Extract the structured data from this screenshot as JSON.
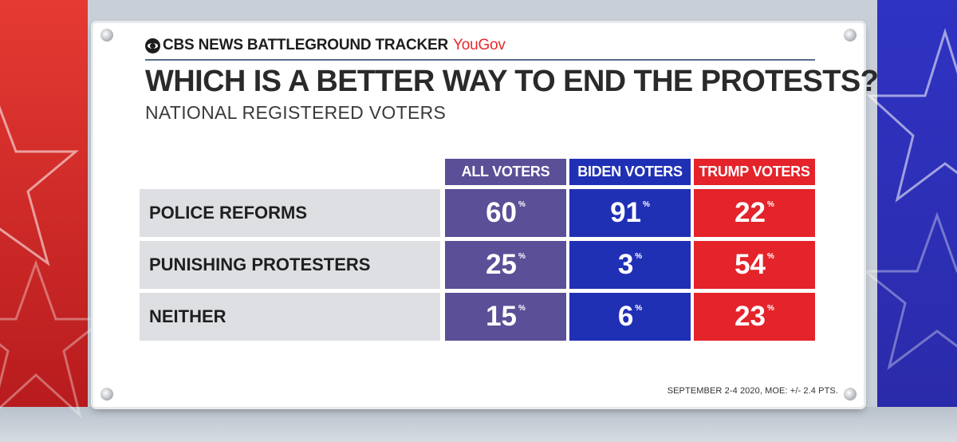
{
  "header": {
    "brand": "CBS NEWS BATTLEGROUND TRACKER",
    "partner": "YouGov",
    "title": "WHICH IS A BETTER WAY TO END THE PROTESTS?",
    "subtitle": "NATIONAL REGISTERED VOTERS"
  },
  "footer": {
    "note": "SEPTEMBER 2-4 2020, MOE: +/- 2.4 PTS."
  },
  "colors": {
    "all_voters": "#5b4f97",
    "biden_voters": "#2030b5",
    "trump_voters": "#e4232a",
    "row_label_bg": "#dddfe3"
  },
  "chart_data": {
    "type": "table",
    "title": "WHICH IS A BETTER WAY TO END THE PROTESTS?",
    "subtitle": "NATIONAL REGISTERED VOTERS",
    "columns": [
      "ALL VOTERS",
      "BIDEN VOTERS",
      "TRUMP VOTERS"
    ],
    "rows": [
      {
        "label": "POLICE REFORMS",
        "values": [
          "60",
          "91",
          "22"
        ]
      },
      {
        "label": "PUNISHING PROTESTERS",
        "values": [
          "25",
          "3",
          "54"
        ]
      },
      {
        "label": "NEITHER",
        "values": [
          "15",
          "6",
          "23"
        ]
      }
    ],
    "unit": "%"
  }
}
